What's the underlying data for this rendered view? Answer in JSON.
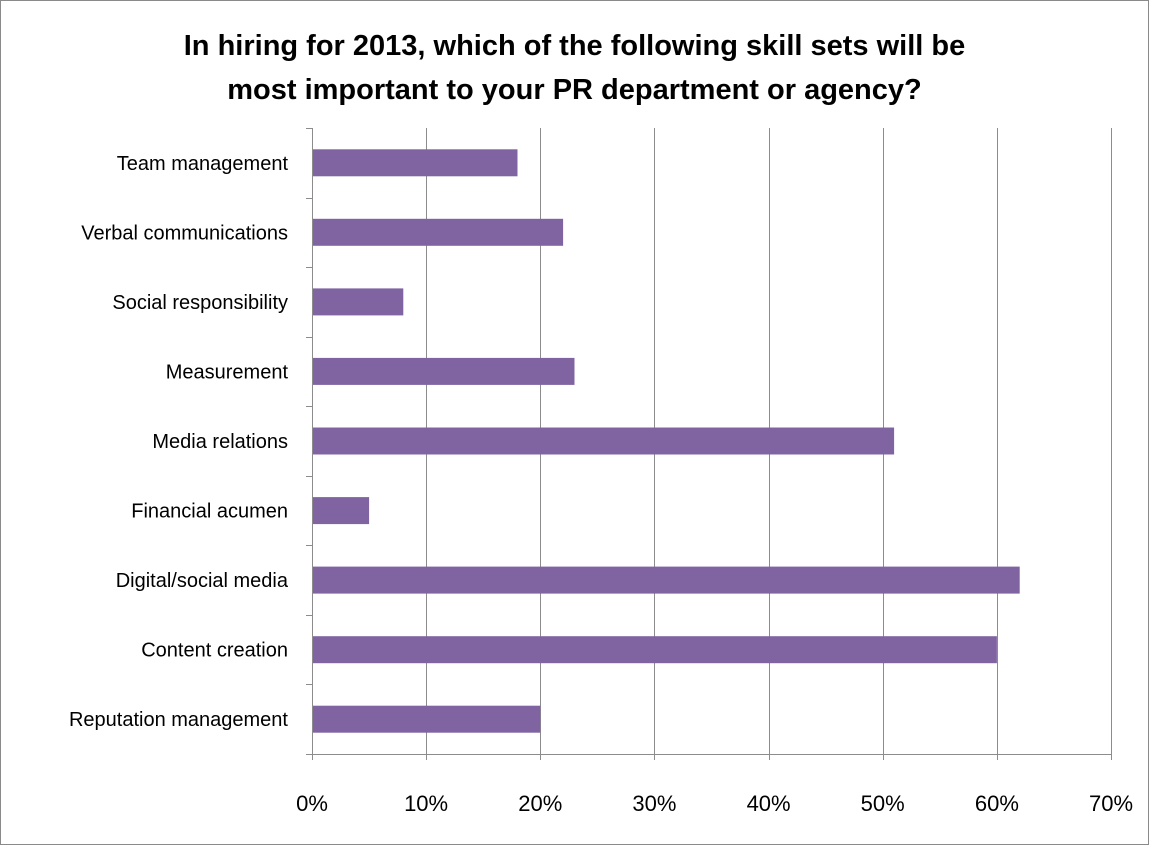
{
  "chart_data": {
    "type": "bar",
    "orientation": "horizontal",
    "title": "In hiring for 2013, which of the following skill sets will be most important to your PR department or agency?",
    "title_lines": [
      "In hiring for 2013, which of the following skill sets will be",
      "most important to your PR department or agency?"
    ],
    "categories": [
      "Team management",
      "Verbal communications",
      "Social responsibility",
      "Measurement",
      "Media relations",
      "Financial acumen",
      "Digital/social media",
      "Content creation",
      "Reputation management"
    ],
    "values": [
      0.18,
      0.22,
      0.08,
      0.23,
      0.51,
      0.05,
      0.62,
      0.6,
      0.2
    ],
    "xlim": [
      0,
      0.7
    ],
    "xticks": [
      0,
      0.1,
      0.2,
      0.3,
      0.4,
      0.5,
      0.6,
      0.7
    ],
    "xtick_labels": [
      "0%",
      "10%",
      "20%",
      "30%",
      "40%",
      "50%",
      "60%",
      "70%"
    ],
    "xlabel": "",
    "ylabel": "",
    "grid": true,
    "legend": "none",
    "bar_color": "#8064a2",
    "grid_color": "#8c8c8c"
  }
}
